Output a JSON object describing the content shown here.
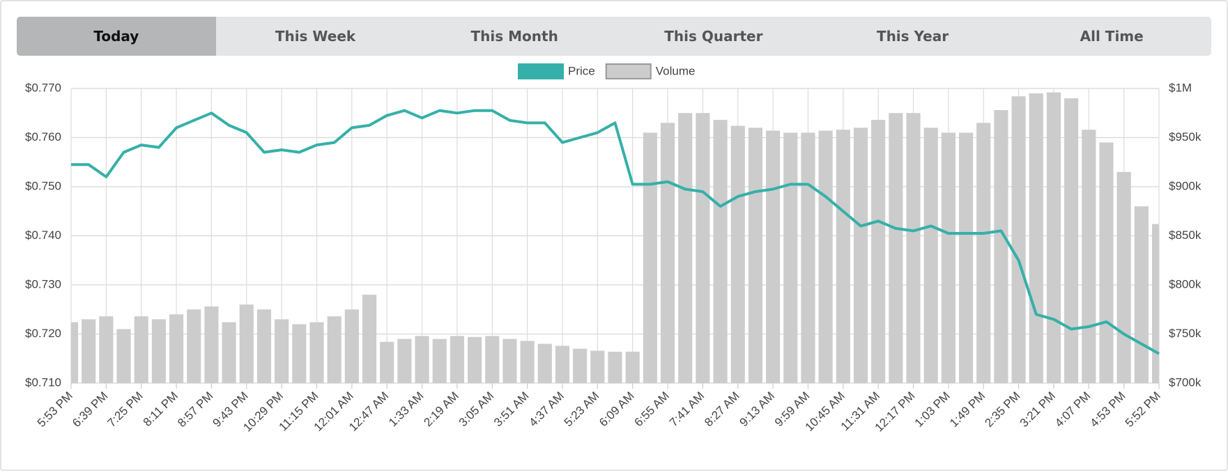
{
  "tabs": [
    "Today",
    "This Week",
    "This Month",
    "This Quarter",
    "This Year",
    "All Time"
  ],
  "active_tab": 0,
  "chart_data": {
    "type": "bar-line",
    "categories": [
      "5:53 PM",
      null,
      "6:39 PM",
      null,
      "7:25 PM",
      null,
      "8:11 PM",
      null,
      "8:57 PM",
      null,
      "9:43 PM",
      null,
      "10:29 PM",
      null,
      "11:15 PM",
      null,
      "12:01 AM",
      null,
      "12:47 AM",
      null,
      "1:33 AM",
      null,
      "2:19 AM",
      null,
      "3:05 AM",
      null,
      "3:51 AM",
      null,
      "4:37 AM",
      null,
      "5:23 AM",
      null,
      "6:09 AM",
      null,
      "6:55 AM",
      null,
      "7:41 AM",
      null,
      "8:27 AM",
      null,
      "9:13 AM",
      null,
      "9:59 AM",
      null,
      "10:45 AM",
      null,
      "11:31 AM",
      null,
      "12:17 PM",
      null,
      "1:03 PM",
      null,
      "1:49 PM",
      null,
      "2:35 PM",
      null,
      "3:21 PM",
      null,
      "4:07 PM",
      null,
      "4:53 PM",
      null,
      "5:52 PM"
    ],
    "series": [
      {
        "name": "Volume",
        "color": "#cccccc",
        "axis": "y2",
        "kind": "bar",
        "values": [
          762000,
          765000,
          768000,
          755000,
          768000,
          765000,
          770000,
          775000,
          778000,
          762000,
          780000,
          775000,
          765000,
          760000,
          762000,
          768000,
          775000,
          790000,
          742000,
          745000,
          748000,
          745000,
          748000,
          747000,
          748000,
          745000,
          743000,
          740000,
          738000,
          735000,
          733000,
          732000,
          732000,
          955000,
          965000,
          975000,
          975000,
          968000,
          962000,
          960000,
          957000,
          955000,
          955000,
          957000,
          958000,
          960000,
          968000,
          975000,
          975000,
          960000,
          955000,
          955000,
          965000,
          978000,
          992000,
          995000,
          996000,
          990000,
          958000,
          945000,
          915000,
          880000,
          862000
        ]
      },
      {
        "name": "Price",
        "color": "#35b0a8",
        "kind": "line",
        "values": [
          0.7545,
          0.7545,
          0.752,
          0.757,
          0.7585,
          0.758,
          0.762,
          0.7635,
          0.765,
          0.7625,
          0.761,
          0.757,
          0.7575,
          0.757,
          0.7585,
          0.759,
          0.762,
          0.7625,
          0.7645,
          0.7655,
          0.764,
          0.7655,
          0.765,
          0.7655,
          0.7655,
          0.7635,
          0.763,
          0.763,
          0.759,
          0.76,
          0.761,
          0.763,
          0.7505,
          0.7505,
          0.751,
          0.7495,
          0.749,
          0.746,
          0.748,
          0.749,
          0.7495,
          0.7505,
          0.7505,
          0.748,
          0.745,
          0.742,
          0.743,
          0.7415,
          0.741,
          0.742,
          0.7405,
          0.7405,
          0.7405,
          0.741,
          0.735,
          0.724,
          0.723,
          0.721,
          0.7215,
          0.7225,
          0.72,
          0.718,
          0.716
        ]
      }
    ],
    "ylim": [
      0.71,
      0.77
    ],
    "yticks": [
      {
        "value": 0.71,
        "label": "$0.710"
      },
      {
        "value": 0.72,
        "label": "$0.720"
      },
      {
        "value": 0.73,
        "label": "$0.730"
      },
      {
        "value": 0.74,
        "label": "$0.740"
      },
      {
        "value": 0.75,
        "label": "$0.750"
      },
      {
        "value": 0.76,
        "label": "$0.760"
      },
      {
        "value": 0.77,
        "label": "$0.770"
      }
    ],
    "y2lim": [
      700000,
      1000000
    ],
    "y2ticks": [
      {
        "value": 700000,
        "label": "$700k"
      },
      {
        "value": 750000,
        "label": "$750k"
      },
      {
        "value": 800000,
        "label": "$800k"
      },
      {
        "value": 850000,
        "label": "$850k"
      },
      {
        "value": 900000,
        "label": "$900k"
      },
      {
        "value": 950000,
        "label": "$950k"
      },
      {
        "value": 1000000,
        "label": "$1M"
      }
    ],
    "grid": true,
    "legend": "top"
  }
}
